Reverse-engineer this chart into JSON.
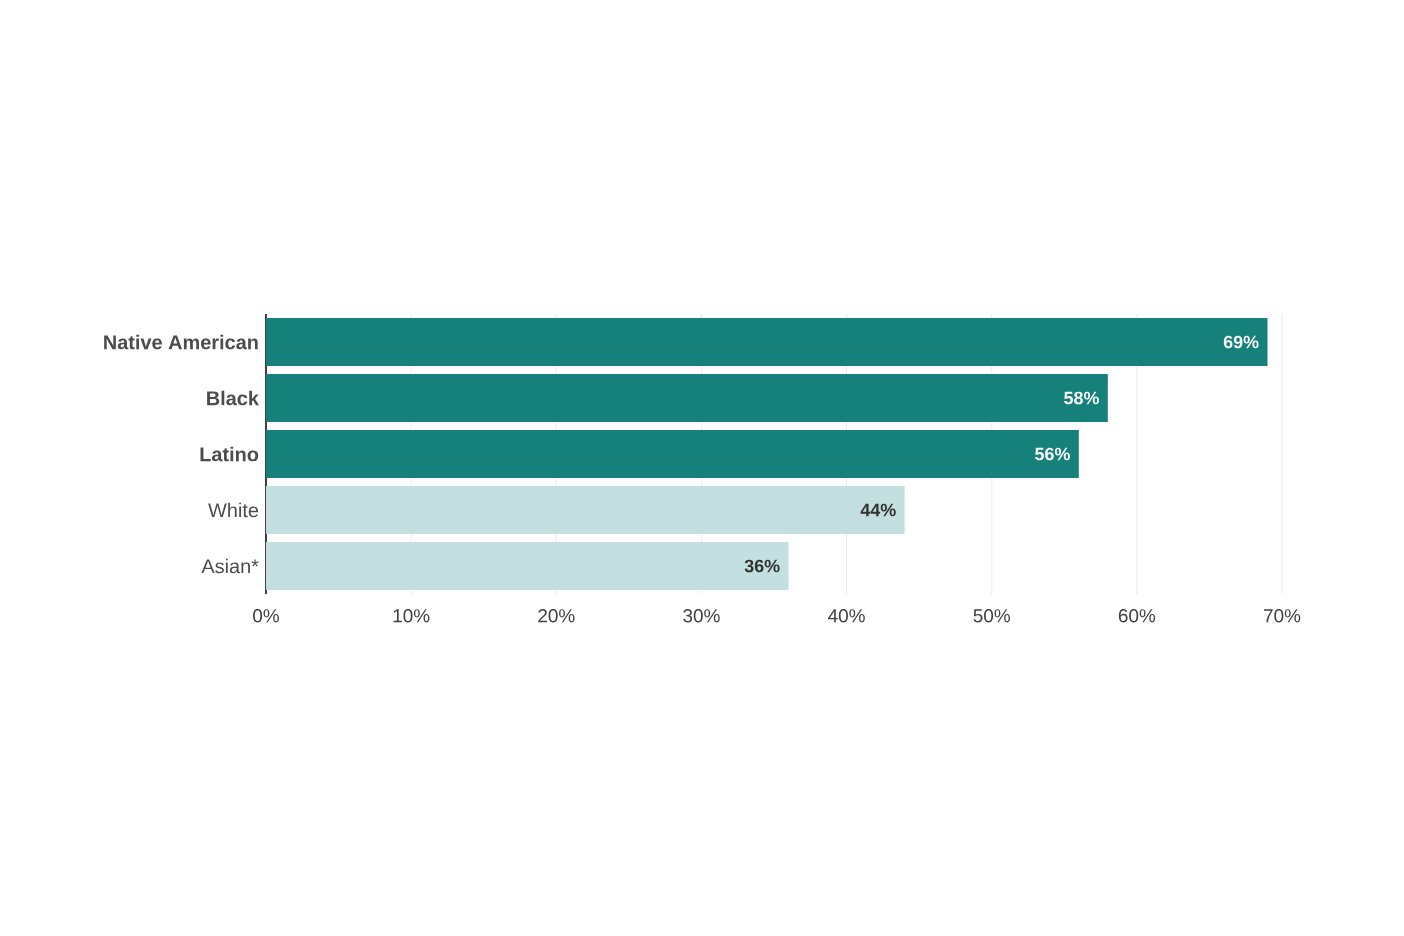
{
  "chart_data": {
    "type": "bar",
    "orientation": "horizontal",
    "categories": [
      "**Native American**",
      "**Black**",
      "**Latino**",
      "White",
      "Asian*"
    ],
    "values": [
      69,
      58,
      56,
      44,
      36
    ],
    "colors": [
      "#16807a",
      "#16807a",
      "#16807a",
      "#c4dfdf",
      "#c4dfdf"
    ],
    "value_labels": [
      "69%",
      "58%",
      "56%",
      "44%",
      "36%"
    ],
    "xlim": [
      0,
      70
    ],
    "xticks": [
      {
        "value": 0,
        "label": "0%"
      },
      {
        "value": 10,
        "label": "10%"
      },
      {
        "value": 20,
        "label": "20%"
      },
      {
        "value": 30,
        "label": "30%"
      },
      {
        "value": 40,
        "label": "40%"
      },
      {
        "value": 50,
        "label": "50%"
      },
      {
        "value": 60,
        "label": "60%"
      },
      {
        "value": 70,
        "label": "70%"
      }
    ],
    "grid": "x"
  }
}
